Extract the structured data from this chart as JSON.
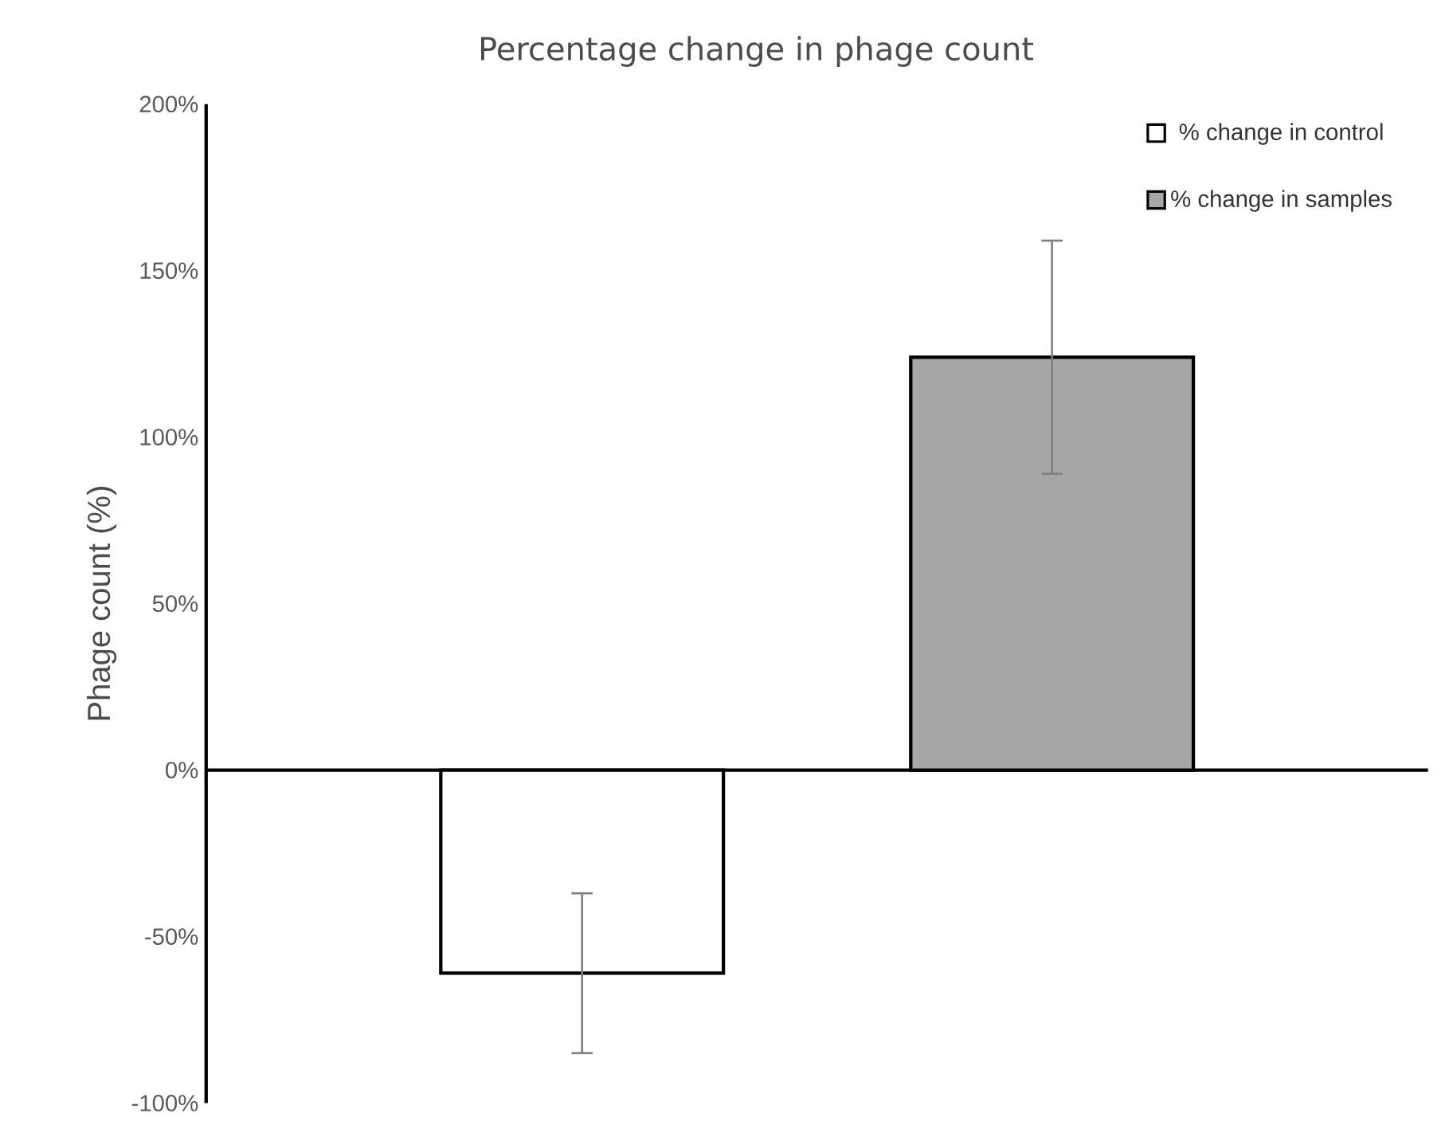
{
  "chart_data": {
    "type": "bar",
    "title": "Percentage change in phage count",
    "ylabel": "Phage count (%)",
    "categories": [
      null,
      null
    ],
    "series": [
      {
        "name": "% change in control",
        "color": "#ffffff",
        "values": [
          -61,
          null
        ],
        "errors": [
          24,
          null
        ]
      },
      {
        "name": "% change in samples",
        "color": "#a6a6a6",
        "values": [
          null,
          124
        ],
        "errors": [
          null,
          35
        ]
      }
    ],
    "ylim": [
      -100,
      200
    ],
    "yticks": [
      {
        "value": -100,
        "label": "-100%"
      },
      {
        "value": -50,
        "label": "-50%"
      },
      {
        "value": 0,
        "label": "0%"
      },
      {
        "value": 50,
        "label": "50%"
      },
      {
        "value": 100,
        "label": "100%"
      },
      {
        "value": 150,
        "label": "150%"
      },
      {
        "value": 200,
        "label": "200%"
      }
    ],
    "legend": "top right"
  }
}
